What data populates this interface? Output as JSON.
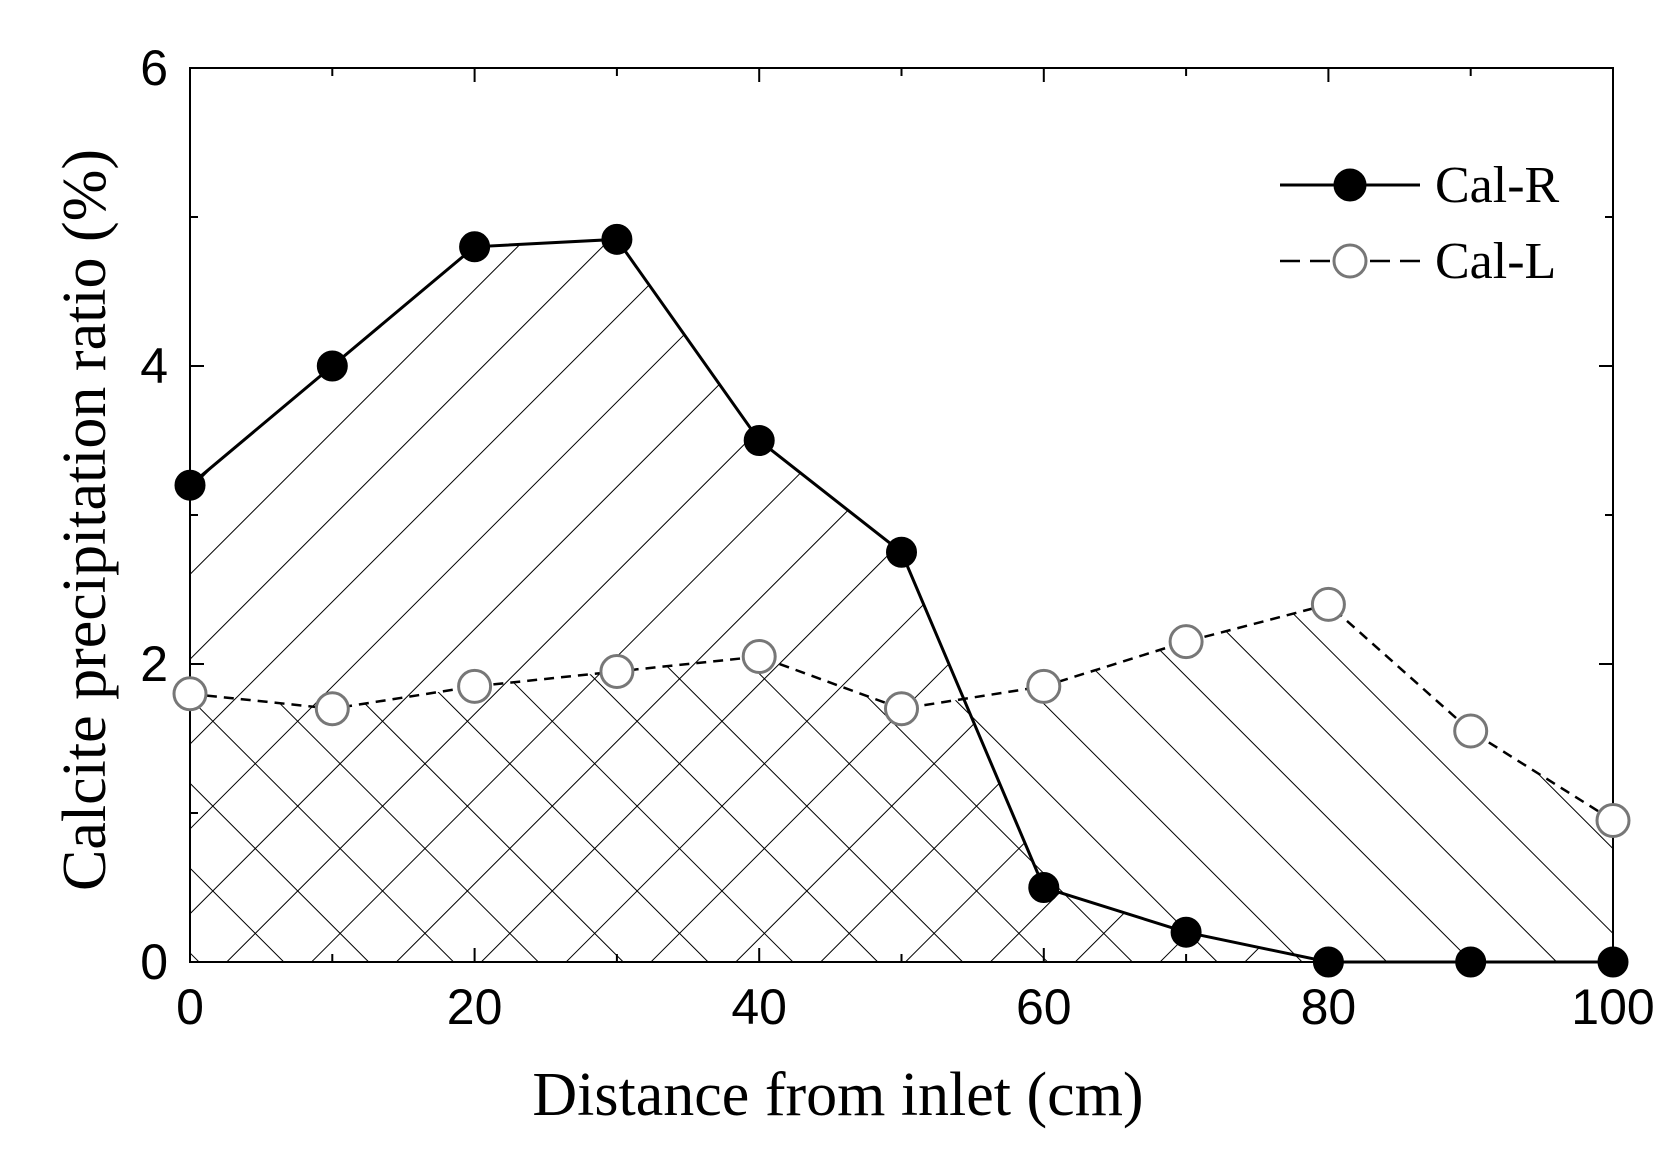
{
  "chart_data": {
    "type": "line",
    "xlabel": "Distance from inlet (cm)",
    "ylabel": "Calcite precipitation ratio (%)",
    "xlim": [
      0,
      100
    ],
    "ylim": [
      0,
      6
    ],
    "xticks": [
      "0",
      "20",
      "40",
      "60",
      "80",
      "100"
    ],
    "yticks": [
      "0",
      "2",
      "4",
      "6"
    ],
    "legend_position": "top-right",
    "hatched_areas": true,
    "series": [
      {
        "name": "Cal-R",
        "marker": "filled-circle",
        "line_style": "solid",
        "x": [
          0,
          10,
          20,
          30,
          40,
          50,
          60,
          70,
          80,
          90,
          100
        ],
        "y": [
          3.2,
          4.0,
          4.8,
          4.85,
          3.5,
          2.75,
          0.5,
          0.2,
          0.0,
          0.0,
          0.0
        ]
      },
      {
        "name": "Cal-L",
        "marker": "open-circle",
        "line_style": "dashed",
        "x": [
          0,
          10,
          20,
          30,
          40,
          50,
          60,
          70,
          80,
          90,
          100
        ],
        "y": [
          1.8,
          1.7,
          1.85,
          1.95,
          2.05,
          1.7,
          1.85,
          2.15,
          2.4,
          1.55,
          0.95
        ]
      }
    ]
  }
}
